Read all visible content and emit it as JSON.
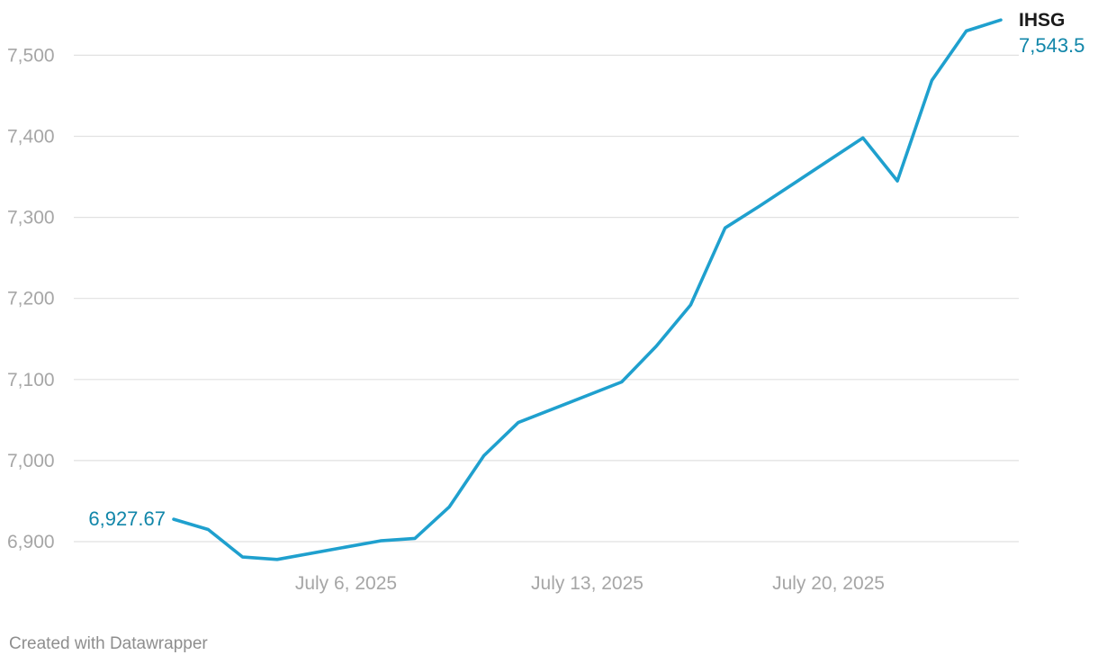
{
  "chart_data": {
    "type": "line",
    "title": "",
    "xlabel": "",
    "ylabel": "",
    "series": [
      {
        "name": "IHSG",
        "color": "#1fa0ce",
        "label_color": "#1186a9",
        "points": [
          {
            "x": "2025-07-01",
            "y": 6927.67
          },
          {
            "x": "2025-07-02",
            "y": 6915
          },
          {
            "x": "2025-07-03",
            "y": 6881
          },
          {
            "x": "2025-07-04",
            "y": 6878
          },
          {
            "x": "2025-07-07",
            "y": 6901
          },
          {
            "x": "2025-07-08",
            "y": 6904
          },
          {
            "x": "2025-07-09",
            "y": 6943
          },
          {
            "x": "2025-07-10",
            "y": 7006
          },
          {
            "x": "2025-07-11",
            "y": 7047
          },
          {
            "x": "2025-07-14",
            "y": 7097
          },
          {
            "x": "2025-07-15",
            "y": 7141
          },
          {
            "x": "2025-07-16",
            "y": 7192
          },
          {
            "x": "2025-07-17",
            "y": 7287
          },
          {
            "x": "2025-07-18",
            "y": 7314
          },
          {
            "x": "2025-07-21",
            "y": 7398
          },
          {
            "x": "2025-07-22",
            "y": 7345
          },
          {
            "x": "2025-07-23",
            "y": 7469
          },
          {
            "x": "2025-07-24",
            "y": 7530
          },
          {
            "x": "2025-07-25",
            "y": 7543.5
          }
        ],
        "start_label": "6,927.67",
        "end_label": "7,543.5"
      }
    ],
    "y_ticks": [
      {
        "value": 6900,
        "label": "6,900"
      },
      {
        "value": 7000,
        "label": "7,000"
      },
      {
        "value": 7100,
        "label": "7,100"
      },
      {
        "value": 7200,
        "label": "7,200"
      },
      {
        "value": 7300,
        "label": "7,300"
      },
      {
        "value": 7400,
        "label": "7,400"
      },
      {
        "value": 7500,
        "label": "7,500"
      }
    ],
    "x_ticks": [
      {
        "value": "2025-07-06",
        "label": "July 6, 2025"
      },
      {
        "value": "2025-07-13",
        "label": "July 13, 2025"
      },
      {
        "value": "2025-07-20",
        "label": "July 20, 2025"
      }
    ],
    "ylim": [
      6900,
      7543.5
    ],
    "xlim": [
      "2025-07-01",
      "2025-07-25"
    ],
    "grid": "horizontal",
    "legend": "none",
    "gridline_color": "#e1e1e1",
    "axis_text_color": "#a6a6a6"
  },
  "footer": {
    "credit": "Created with Datawrapper"
  }
}
